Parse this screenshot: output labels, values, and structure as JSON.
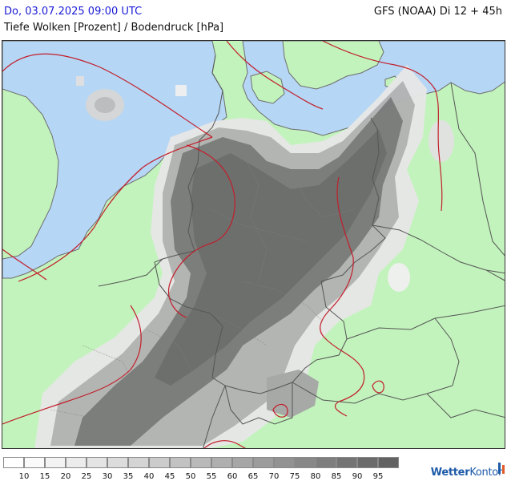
{
  "header": {
    "date": "Do, 03.07.2025 09:00 UTC",
    "model": "GFS (NOAA) Di 12 + 45h",
    "subtitle": "Tiefe Wolken [Prozent] / Bodendruck [hPa]"
  },
  "map": {
    "colors": {
      "sea": "#b5d6f4",
      "land": "#c2f3bc",
      "border": "#555555",
      "isobar": "#c21e2a",
      "coast": "#6e6e6e"
    },
    "cloud_colors": [
      "#ffffff",
      "#e7e7e7",
      "#cfcfcf",
      "#b3b3b3",
      "#949494",
      "#7a7a7a",
      "#6a6a6a"
    ]
  },
  "legend": {
    "ticks": [
      "10",
      "15",
      "20",
      "25",
      "30",
      "35",
      "40",
      "45",
      "50",
      "55",
      "60",
      "65",
      "70",
      "75",
      "80",
      "85",
      "90",
      "95"
    ],
    "colors": [
      "#ffffff",
      "#fafafa",
      "#f3f3f3",
      "#ececec",
      "#e4e4e4",
      "#dcdcdc",
      "#d4d4d4",
      "#cbcbcb",
      "#c2c2c2",
      "#b9b9b9",
      "#afafaf",
      "#a6a6a6",
      "#9c9c9c",
      "#929292",
      "#888888",
      "#7e7e7e",
      "#747474",
      "#6b6b6b",
      "#626262"
    ]
  },
  "branding": {
    "logo_part1": "Wetter",
    "logo_part2": "Kontor"
  }
}
